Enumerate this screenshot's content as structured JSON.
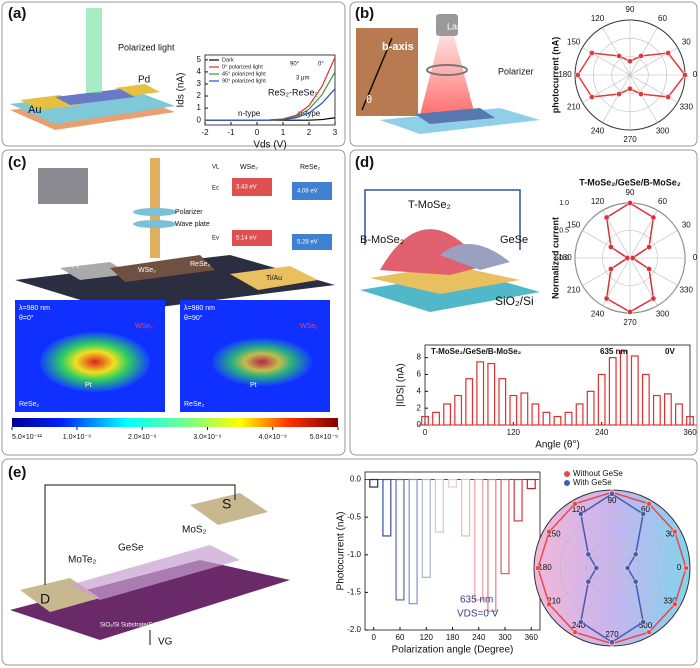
{
  "panels": {
    "a": {
      "label": "(a)",
      "texts": [
        "Polarized light",
        "Pd",
        "Au",
        "90°",
        "0°",
        "3 μm",
        "ReS₂-ReSe₂",
        "n-type",
        "p-type"
      ]
    },
    "b": {
      "label": "(b)",
      "texts": [
        "b-axis",
        "θ",
        "Laser",
        "Polarizer"
      ]
    },
    "c": {
      "label": "(c)",
      "texts": [
        "Polarizer",
        "Wave plate",
        "Pt",
        "WSe₂",
        "ReSe₂",
        "Ti/Au",
        "VL",
        "Ec",
        "Ev",
        "WSe₂",
        "ReSe₂",
        "3.43 eV",
        "4.08 eV",
        "5.14 eV",
        "5.28 eV",
        "λ=980 nm",
        "θ=0°",
        "WSe₂",
        "ReSe₂",
        "Pt",
        "λ=980 nm",
        "θ=90°",
        "WSe₂",
        "ReSe₂",
        "Pt"
      ]
    },
    "d": {
      "label": "(d)",
      "texts": [
        "B-MoSe₂",
        "T-MoSe₂",
        "GeSe",
        "SiO₂/Si"
      ]
    },
    "e": {
      "label": "(e)",
      "texts": [
        "D",
        "S",
        "MoTe₂",
        "GeSe",
        "MoS₂",
        "SiO₂/Si Substrate(SiO₂=300nm)",
        "VG"
      ]
    }
  },
  "chart_data": [
    {
      "type": "line",
      "x_label": "Vds (V)",
      "y_label": "Ids (nA)",
      "xlim": [
        -2,
        3
      ],
      "ylim": [
        -0.4,
        5.4
      ],
      "xticks": [
        -2,
        -1,
        0,
        1,
        2,
        3
      ],
      "yticks": [
        0,
        1,
        2,
        3,
        4,
        5
      ],
      "legend": "upper left",
      "x": [
        -2,
        -1,
        0,
        0.5,
        1,
        1.5,
        2,
        2.5,
        3
      ],
      "series": [
        {
          "name": "Dark",
          "color": "#000000",
          "values": [
            0,
            0,
            0,
            0,
            0,
            0,
            0,
            0.05,
            0.2
          ]
        },
        {
          "name": "0° polarized light",
          "color": "#e0302a",
          "values": [
            0,
            0,
            0,
            0.02,
            0.1,
            0.4,
            1.2,
            2.8,
            5.2
          ]
        },
        {
          "name": "45° polarized light",
          "color": "#3a9a3a",
          "values": [
            0,
            0,
            0,
            0.02,
            0.08,
            0.3,
            0.9,
            2.1,
            4.0
          ]
        },
        {
          "name": "90° polarized light",
          "color": "#2a4fd0",
          "values": [
            0,
            0,
            0,
            0.01,
            0.05,
            0.2,
            0.6,
            1.4,
            2.6
          ]
        }
      ]
    },
    {
      "type": "polar",
      "y_label": "photocurrent (nA)",
      "rlim": [
        0,
        1
      ],
      "theta": [
        0,
        30,
        60,
        90,
        120,
        150,
        180,
        210,
        240,
        270,
        300,
        330
      ],
      "thetaticks": [
        0,
        30,
        60,
        90,
        120,
        150,
        180,
        210,
        240,
        270,
        300,
        330
      ],
      "series": [
        {
          "color": "#e03a3a",
          "values": [
            1.0,
            0.8,
            0.4,
            0.25,
            0.4,
            0.8,
            0.95,
            0.8,
            0.4,
            0.25,
            0.4,
            0.8
          ]
        }
      ]
    },
    {
      "type": "colorbar",
      "xlim": [
        5e-12,
        5e-09
      ],
      "xticks": [
        {
          "value": 5e-12,
          "label": "5.0×10⁻¹²"
        },
        {
          "value": 1e-09,
          "label": "1.0×10⁻⁹"
        },
        {
          "value": 2e-09,
          "label": "2.0×10⁻⁹"
        },
        {
          "value": 3e-09,
          "label": "3.0×10⁻⁹"
        },
        {
          "value": 4e-09,
          "label": "4.0×10⁻⁹"
        },
        {
          "value": 5e-09,
          "label": "5.0×10⁻⁹"
        }
      ]
    },
    {
      "type": "polar",
      "title": "T-MoSe₂/GeSe/B-MoSe₂",
      "y_label": "Normalized current",
      "rlim": [
        0,
        1
      ],
      "rticks": [
        {
          "value": 0,
          "label": "0.0"
        },
        0.5,
        {
          "value": 1,
          "label": "1.0"
        }
      ],
      "theta": [
        0,
        30,
        60,
        90,
        120,
        150,
        180,
        210,
        240,
        270,
        300,
        330
      ],
      "thetaticks": [
        0,
        30,
        60,
        90,
        120,
        150,
        180,
        210,
        240,
        270,
        300,
        330
      ],
      "series": [
        {
          "color": "#d9303a",
          "values": [
            0.05,
            0.4,
            0.85,
            1.0,
            0.85,
            0.4,
            0.05,
            0.4,
            0.85,
            0.98,
            0.85,
            0.4
          ]
        }
      ]
    },
    {
      "type": "pulse",
      "title": "T-MoSe₂/GeSe/B-MoSe₂",
      "annotations": [
        "635 nm",
        "0V"
      ],
      "x_label": "Angle (θ°)",
      "y_label": "|IDS| (nA)",
      "xlim": [
        0,
        360
      ],
      "ylim": [
        0,
        9.5
      ],
      "xticks": [
        0,
        120,
        240,
        360
      ],
      "yticks": [
        0,
        2,
        4,
        6,
        8
      ],
      "color": "#e03030",
      "x": [
        0,
        15,
        30,
        45,
        60,
        75,
        90,
        105,
        120,
        135,
        150,
        165,
        180,
        195,
        210,
        225,
        240,
        255,
        270,
        285,
        300,
        315,
        330,
        345,
        360
      ],
      "values": [
        1.0,
        1.5,
        2.5,
        3.5,
        5.5,
        7.5,
        7.3,
        5.5,
        3.5,
        3.8,
        2.5,
        1.5,
        1.0,
        1.5,
        2.5,
        4.0,
        6.0,
        8.0,
        8.8,
        8.2,
        6.0,
        3.5,
        3.7,
        2.5,
        1.0
      ]
    },
    {
      "type": "pulse",
      "annotations": [
        "635 nm",
        "VDS=0 V"
      ],
      "x_label": "Polarization angle (Degree)",
      "y_label": "Photocurrent (nA)",
      "xlim": [
        -20,
        380
      ],
      "ylim": [
        -2.0,
        0.1
      ],
      "xticks": [
        0,
        60,
        120,
        180,
        240,
        300,
        360
      ],
      "yticks": [
        {
          "value": 0,
          "label": "0.0"
        },
        -0.5,
        {
          "value": -1,
          "label": "-1.0"
        },
        -1.5,
        {
          "value": -2,
          "label": "-2.0"
        }
      ],
      "x": [
        0,
        30,
        60,
        90,
        120,
        150,
        180,
        210,
        240,
        270,
        300,
        330,
        360
      ],
      "values": [
        -0.1,
        -0.75,
        -1.6,
        -1.65,
        -1.3,
        -0.7,
        -0.1,
        -0.75,
        -1.6,
        -1.75,
        -1.25,
        -0.55,
        -0.12
      ],
      "colors": [
        "#1f2a80",
        "#3b4aa0",
        "#5a68b8",
        "#8390cc",
        "#aab3dc",
        "#c8cce6",
        "#e6cfd4",
        "#f0b8bd",
        "#eba0a6",
        "#e57c84",
        "#dd5a62",
        "#d43840",
        "#cc1c24"
      ]
    },
    {
      "type": "polar",
      "rlim": [
        0,
        1
      ],
      "legend": "upper right",
      "theta": [
        0,
        30,
        60,
        90,
        120,
        150,
        180,
        210,
        240,
        270,
        300,
        330
      ],
      "thetaticks": [
        0,
        30,
        60,
        90,
        120,
        150,
        180,
        210,
        240,
        270,
        300,
        330
      ],
      "series": [
        {
          "name": "Without GeSe",
          "color": "#e84a4a",
          "values": [
            0.95,
            0.93,
            0.95,
            0.97,
            0.95,
            0.93,
            0.95,
            0.93,
            0.95,
            0.97,
            0.95,
            0.93
          ]
        },
        {
          "name": "With GeSe",
          "color": "#4a5aa8",
          "values": [
            0.2,
            0.35,
            0.8,
            0.95,
            0.8,
            0.35,
            0.2,
            0.35,
            0.8,
            0.95,
            0.8,
            0.35
          ]
        }
      ]
    }
  ]
}
